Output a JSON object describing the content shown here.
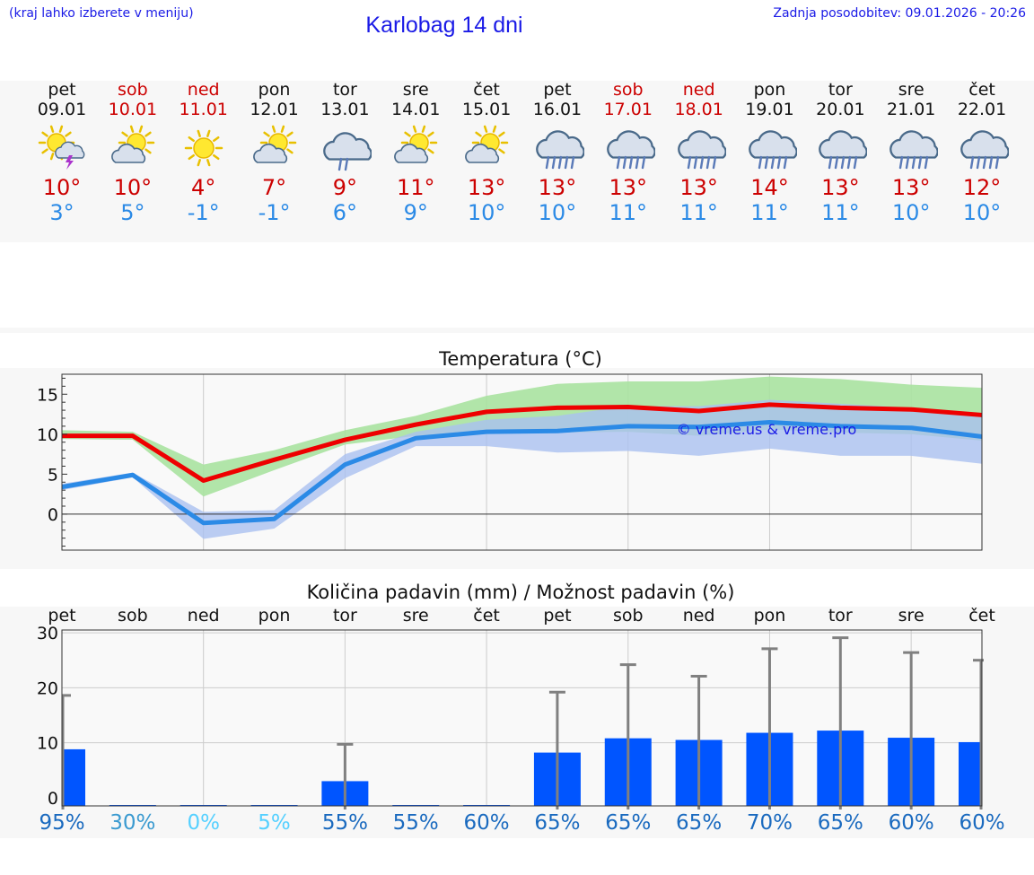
{
  "header": {
    "hint": "(kraj lahko izberete v meniju)",
    "title": "Karlobag 14 dni",
    "updated": "Zadnja posodobitev: 09.01.2026 - 20:26"
  },
  "days": [
    {
      "name": "pet",
      "date": "09.01",
      "weekend": false,
      "icon": "sun-cloud-thunder-icon",
      "tmax": "10°",
      "tmin": "3°"
    },
    {
      "name": "sob",
      "date": "10.01",
      "weekend": true,
      "icon": "sun-behind-cloud-icon",
      "tmax": "10°",
      "tmin": "5°"
    },
    {
      "name": "ned",
      "date": "11.01",
      "weekend": true,
      "icon": "sun-icon",
      "tmax": "4°",
      "tmin": "-1°"
    },
    {
      "name": "pon",
      "date": "12.01",
      "weekend": false,
      "icon": "sun-behind-cloud-icon",
      "tmax": "7°",
      "tmin": "-1°"
    },
    {
      "name": "tor",
      "date": "13.01",
      "weekend": false,
      "icon": "cloud-light-rain-icon",
      "tmax": "9°",
      "tmin": "6°"
    },
    {
      "name": "sre",
      "date": "14.01",
      "weekend": false,
      "icon": "sun-behind-cloud-icon",
      "tmax": "11°",
      "tmin": "9°"
    },
    {
      "name": "čet",
      "date": "15.01",
      "weekend": false,
      "icon": "sun-behind-cloud-icon",
      "tmax": "13°",
      "tmin": "10°"
    },
    {
      "name": "pet",
      "date": "16.01",
      "weekend": false,
      "icon": "cloud-rain-icon",
      "tmax": "13°",
      "tmin": "10°"
    },
    {
      "name": "sob",
      "date": "17.01",
      "weekend": true,
      "icon": "cloud-rain-icon",
      "tmax": "13°",
      "tmin": "11°"
    },
    {
      "name": "ned",
      "date": "18.01",
      "weekend": true,
      "icon": "cloud-rain-icon",
      "tmax": "13°",
      "tmin": "11°"
    },
    {
      "name": "pon",
      "date": "19.01",
      "weekend": false,
      "icon": "cloud-rain-icon",
      "tmax": "14°",
      "tmin": "11°"
    },
    {
      "name": "tor",
      "date": "20.01",
      "weekend": false,
      "icon": "cloud-rain-icon",
      "tmax": "13°",
      "tmin": "11°"
    },
    {
      "name": "sre",
      "date": "21.01",
      "weekend": false,
      "icon": "cloud-rain-icon",
      "tmax": "13°",
      "tmin": "10°"
    },
    {
      "name": "čet",
      "date": "22.01",
      "weekend": false,
      "icon": "cloud-rain-icon",
      "tmax": "12°",
      "tmin": "10°"
    }
  ],
  "colors": {
    "title_blue": "#1a1ae6",
    "tmax_red": "#ee0000",
    "tmin_blue": "#2b8ae6",
    "max_band": "#a8e2a0",
    "min_band": "#aac0f0",
    "overlap_band": "#74b8a8",
    "bar_blue": "#0055ff",
    "whisker_gray": "#808080"
  },
  "chart_data": [
    {
      "type": "line",
      "title": "Temperatura (°C)",
      "watermark": "© vreme.us & vreme.pro",
      "x": [
        0,
        1,
        2,
        3,
        4,
        5,
        6,
        7,
        8,
        9,
        10,
        11,
        12,
        13
      ],
      "ylim": [
        -4.5,
        17.5
      ],
      "yticks": [
        0,
        5,
        10,
        15
      ],
      "series": [
        {
          "name": "max",
          "values": [
            9.8,
            9.8,
            4.2,
            6.8,
            9.3,
            11.2,
            12.8,
            13.3,
            13.4,
            12.9,
            13.7,
            13.3,
            13.1,
            12.4
          ],
          "band_low": [
            9.4,
            9.3,
            2.2,
            5.5,
            8.7,
            9.8,
            10.3,
            10.2,
            10.3,
            9.8,
            10.6,
            10.2,
            10.0,
            9.2
          ],
          "band_high": [
            10.5,
            10.3,
            6.2,
            8.0,
            10.5,
            12.3,
            14.8,
            16.3,
            16.6,
            16.6,
            17.2,
            16.9,
            16.2,
            15.8
          ]
        },
        {
          "name": "min",
          "values": [
            3.4,
            4.9,
            -1.1,
            -0.6,
            6.2,
            9.5,
            10.3,
            10.4,
            11.0,
            10.9,
            11.5,
            11.0,
            10.8,
            9.7
          ],
          "band_low": [
            3.0,
            4.6,
            -3.1,
            -1.8,
            4.5,
            8.5,
            8.5,
            7.7,
            7.9,
            7.3,
            8.2,
            7.3,
            7.3,
            6.3
          ],
          "band_high": [
            3.8,
            5.2,
            0.3,
            0.5,
            7.5,
            10.3,
            11.8,
            12.3,
            13.5,
            13.5,
            14.3,
            13.8,
            13.3,
            12.4
          ]
        }
      ]
    },
    {
      "type": "bar",
      "title": "Količina padavin (mm) / Možnost padavin (%)",
      "categories": [
        "pet",
        "sob",
        "ned",
        "pon",
        "tor",
        "sre",
        "čet",
        "pet",
        "sob",
        "ned",
        "pon",
        "tor",
        "sre",
        "čet"
      ],
      "values": [
        8.8,
        0,
        0,
        0,
        3.0,
        0,
        0,
        8.2,
        10.8,
        10.5,
        11.8,
        12.2,
        10.9,
        10.1
      ],
      "whisker_max": [
        18.6,
        0,
        0,
        0,
        9.7,
        0,
        0,
        19.2,
        24.2,
        22.1,
        27.1,
        29.1,
        26.4,
        25.0
      ],
      "ylim": [
        -1.5,
        30.5
      ],
      "yticks": [
        0,
        10,
        20,
        30
      ],
      "probability": [
        "95%",
        "30%",
        "0%",
        "5%",
        "55%",
        "55%",
        "60%",
        "65%",
        "65%",
        "65%",
        "70%",
        "65%",
        "60%",
        "60%"
      ],
      "probability_colors": [
        "#1a6abf",
        "#3a9ad0",
        "#55d0ff",
        "#55d0ff",
        "#1a6abf",
        "#1a6abf",
        "#1a6abf",
        "#1a6abf",
        "#1a6abf",
        "#1a6abf",
        "#1a6abf",
        "#1a6abf",
        "#1a6abf",
        "#1a6abf"
      ]
    }
  ]
}
